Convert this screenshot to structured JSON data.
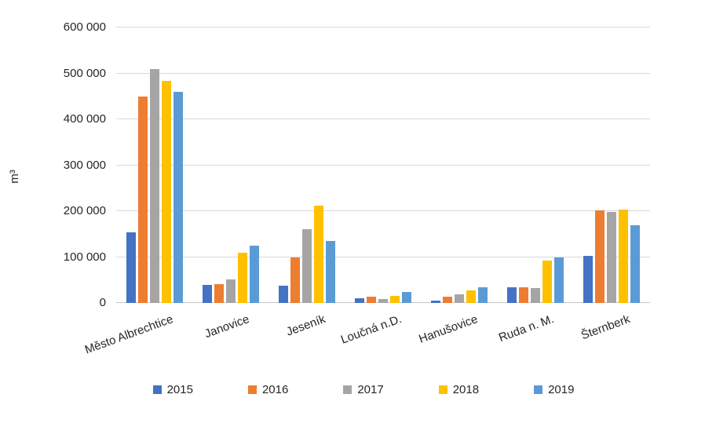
{
  "chart_data": {
    "type": "bar",
    "title": "",
    "xlabel": "",
    "ylabel": "m³",
    "categories": [
      "Město Albrechtice",
      "Janovice",
      "Jeseník",
      "Loučná n.D.",
      "Hanušovice",
      "Ruda n. M.",
      "Šternberk"
    ],
    "series": [
      {
        "name": "2015",
        "color": "#4472C4",
        "values": [
          154000,
          40000,
          38000,
          10000,
          6000,
          34000,
          102000
        ]
      },
      {
        "name": "2016",
        "color": "#ED7D31",
        "values": [
          450000,
          41000,
          100000,
          13000,
          14000,
          35000,
          202000
        ]
      },
      {
        "name": "2017",
        "color": "#A5A5A5",
        "values": [
          510000,
          52000,
          160000,
          9000,
          18000,
          33000,
          199000
        ]
      },
      {
        "name": "2018",
        "color": "#FFC000",
        "values": [
          483000,
          110000,
          212000,
          15000,
          28000,
          92000,
          204000
        ]
      },
      {
        "name": "2019",
        "color": "#5B9BD5",
        "values": [
          460000,
          125000,
          135000,
          24000,
          35000,
          99000,
          170000
        ]
      }
    ],
    "ylim": [
      0,
      600000
    ],
    "ytick_step": 100000,
    "ytick_labels": [
      "0",
      "100 000",
      "200 000",
      "300 000",
      "400 000",
      "500 000",
      "600 000"
    ],
    "grid": true,
    "legend_position": "bottom",
    "colors": {
      "gridline": "#D9D9D9",
      "axis_line": "#C9C9C9",
      "text": "#262626",
      "background": "#FFFFFF"
    }
  }
}
